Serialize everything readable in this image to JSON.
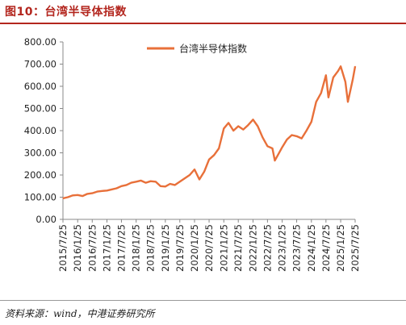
{
  "figure": {
    "title": "图10：台湾半导体指数",
    "source": "资料来源：wind，中港证券研究所"
  },
  "colors": {
    "line": "#E8703A",
    "title": "#b3261e"
  },
  "chart_data": {
    "type": "line",
    "title": "",
    "xlabel": "",
    "ylabel": "",
    "ylim": [
      0,
      800
    ],
    "yticks": [
      "0.00",
      "100.00",
      "200.00",
      "300.00",
      "400.00",
      "500.00",
      "600.00",
      "700.00",
      "800.00"
    ],
    "xticks": [
      "2015/7/25",
      "2016/1/25",
      "2016/7/25",
      "2017/1/25",
      "2017/7/25",
      "2018/1/25",
      "2018/7/25",
      "2019/1/25",
      "2019/7/25",
      "2020/1/25",
      "2020/7/25",
      "2021/1/25",
      "2021/7/25",
      "2022/1/25",
      "2022/7/25",
      "2023/1/25",
      "2023/7/25",
      "2024/1/25",
      "2024/7/25",
      "2025/1/25",
      "2025/7/25"
    ],
    "grid": false,
    "legend_position": "top-center",
    "series": [
      {
        "name": "台湾半导体指数",
        "points": [
          [
            "2015/7/25",
            95
          ],
          [
            "2015/9/25",
            100
          ],
          [
            "2015/11/25",
            108
          ],
          [
            "2016/1/25",
            110
          ],
          [
            "2016/3/25",
            105
          ],
          [
            "2016/5/25",
            115
          ],
          [
            "2016/7/25",
            118
          ],
          [
            "2016/9/25",
            125
          ],
          [
            "2016/11/25",
            128
          ],
          [
            "2017/1/25",
            130
          ],
          [
            "2017/3/25",
            135
          ],
          [
            "2017/5/25",
            140
          ],
          [
            "2017/7/25",
            150
          ],
          [
            "2017/9/25",
            155
          ],
          [
            "2017/11/25",
            165
          ],
          [
            "2018/1/25",
            170
          ],
          [
            "2018/3/25",
            175
          ],
          [
            "2018/5/25",
            165
          ],
          [
            "2018/7/25",
            172
          ],
          [
            "2018/9/25",
            170
          ],
          [
            "2018/11/25",
            150
          ],
          [
            "2019/1/25",
            148
          ],
          [
            "2019/3/25",
            160
          ],
          [
            "2019/5/25",
            155
          ],
          [
            "2019/7/25",
            170
          ],
          [
            "2019/9/25",
            185
          ],
          [
            "2019/11/25",
            200
          ],
          [
            "2020/1/25",
            225
          ],
          [
            "2020/3/25",
            180
          ],
          [
            "2020/5/25",
            215
          ],
          [
            "2020/7/25",
            270
          ],
          [
            "2020/9/25",
            290
          ],
          [
            "2020/11/25",
            320
          ],
          [
            "2021/1/25",
            410
          ],
          [
            "2021/3/25",
            435
          ],
          [
            "2021/5/25",
            400
          ],
          [
            "2021/7/25",
            420
          ],
          [
            "2021/9/25",
            405
          ],
          [
            "2021/11/25",
            425
          ],
          [
            "2022/1/25",
            450
          ],
          [
            "2022/3/25",
            420
          ],
          [
            "2022/5/25",
            370
          ],
          [
            "2022/7/25",
            330
          ],
          [
            "2022/9/25",
            320
          ],
          [
            "2022/10/25",
            265
          ],
          [
            "2022/12/25",
            305
          ],
          [
            "2023/1/25",
            325
          ],
          [
            "2023/3/25",
            360
          ],
          [
            "2023/5/25",
            380
          ],
          [
            "2023/7/25",
            375
          ],
          [
            "2023/9/25",
            365
          ],
          [
            "2023/11/25",
            400
          ],
          [
            "2024/1/25",
            440
          ],
          [
            "2024/3/25",
            530
          ],
          [
            "2024/5/25",
            570
          ],
          [
            "2024/7/25",
            650
          ],
          [
            "2024/8/25",
            550
          ],
          [
            "2024/10/25",
            640
          ],
          [
            "2024/12/25",
            670
          ],
          [
            "2025/1/25",
            690
          ],
          [
            "2025/3/25",
            620
          ],
          [
            "2025/4/25",
            530
          ],
          [
            "2025/6/25",
            630
          ],
          [
            "2025/7/25",
            690
          ]
        ]
      }
    ]
  }
}
